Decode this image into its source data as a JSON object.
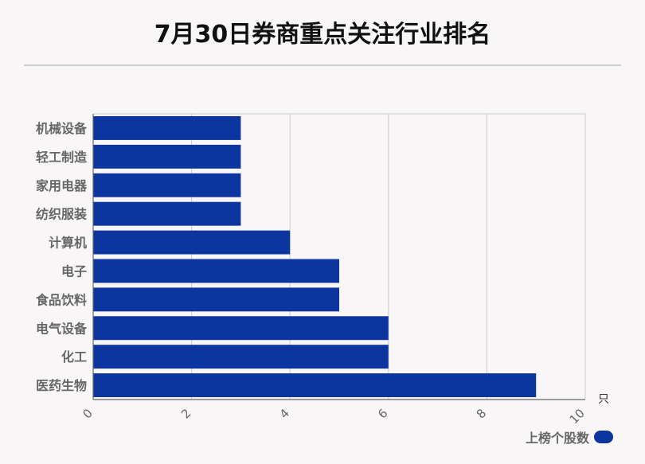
{
  "title": "7月30日券商重点关注行业排名",
  "chart_data": {
    "type": "bar",
    "orientation": "horizontal",
    "title": "7月30日券商重点关注行业排名",
    "categories": [
      "机械设备",
      "轻工制造",
      "家用电器",
      "纺织服装",
      "计算机",
      "电子",
      "食品饮料",
      "电气设备",
      "化工",
      "医药生物"
    ],
    "series": [
      {
        "name": "上榜个股数",
        "values": [
          3,
          3,
          3,
          3,
          4,
          5,
          5,
          6,
          6,
          9
        ]
      }
    ],
    "xlim": [
      0,
      10
    ],
    "xticks": [
      0,
      2,
      4,
      6,
      8,
      10
    ],
    "unit": "只",
    "grid": true,
    "legend": "bottom-right"
  },
  "colors": {
    "bar": "#0c35a0"
  }
}
